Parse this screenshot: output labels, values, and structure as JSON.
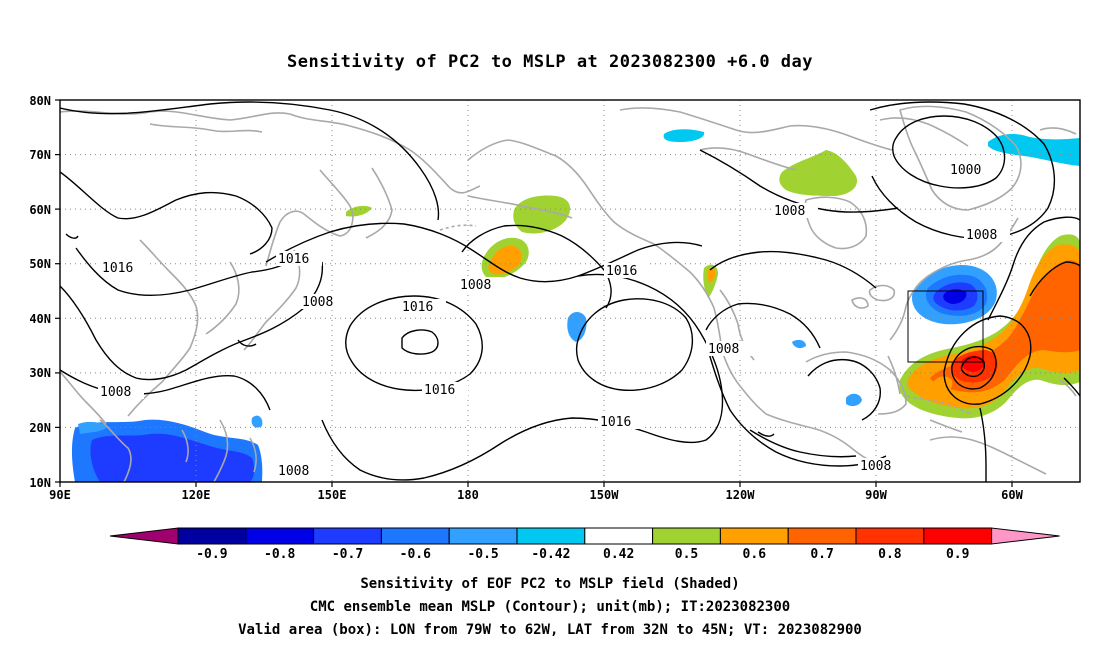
{
  "title": "Sensitivity of PC2 to MSLP at 2023082300 +6.0 day",
  "lat_labels": [
    "80N",
    "70N",
    "60N",
    "50N",
    "40N",
    "30N",
    "20N",
    "10N"
  ],
  "lon_labels": [
    "90E",
    "120E",
    "150E",
    "180",
    "150W",
    "120W",
    "90W",
    "60W"
  ],
  "contour_labels": [
    "1016",
    "1016",
    "1008",
    "1016",
    "1016",
    "1008",
    "1008",
    "1016",
    "1016",
    "1008",
    "1000",
    "1008",
    "1008",
    "1008",
    "1008"
  ],
  "colorbar": {
    "labels": [
      "-0.9",
      "-0.8",
      "-0.7",
      "-0.6",
      "-0.5",
      "-0.42",
      "0.42",
      "0.5",
      "0.6",
      "0.7",
      "0.8",
      "0.9"
    ],
    "colors": [
      "#a0006e",
      "#0000a0",
      "#0000e6",
      "#1e3cff",
      "#1e78ff",
      "#32a0ff",
      "#00c8f0",
      "#ffffff",
      "#a0d232",
      "#ffa000",
      "#ff6400",
      "#ff3200",
      "#ff0000",
      "#ff96c8"
    ]
  },
  "caption": [
    "Sensitivity of EOF PC2 to MSLP field (Shaded)",
    "CMC ensemble mean MSLP (Contour); unit(mb); IT:2023082300",
    "Valid area (box): LON from 79W to 62W, LAT from 32N to 45N; VT: 2023082900"
  ],
  "valid_box": {
    "lon_range": [
      "79W",
      "62W"
    ],
    "lat_range": [
      "32N",
      "45N"
    ]
  },
  "colors": {
    "coast": "#a9a9a9",
    "contour": "#000000",
    "grid": "#888888"
  }
}
